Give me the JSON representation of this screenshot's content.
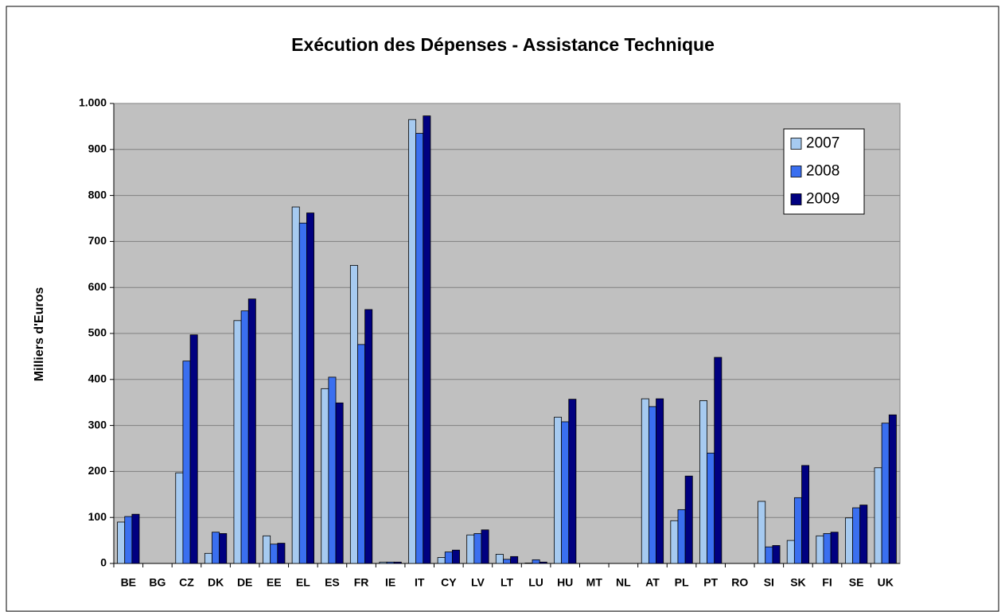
{
  "chart_data": {
    "type": "bar",
    "title": "Exécution des Dépenses - Assistance Technique",
    "y_label": "Milliers d'Euros",
    "categories": [
      "BE",
      "BG",
      "CZ",
      "DK",
      "DE",
      "EE",
      "EL",
      "ES",
      "FR",
      "IE",
      "IT",
      "CY",
      "LV",
      "LT",
      "LU",
      "HU",
      "MT",
      "NL",
      "AT",
      "PL",
      "PT",
      "RO",
      "SI",
      "SK",
      "FI",
      "SE",
      "UK"
    ],
    "series": [
      {
        "name": "2007",
        "color": "#a6caf0",
        "values": [
          90,
          0,
          197,
          22,
          528,
          60,
          775,
          380,
          648,
          3,
          965,
          13,
          62,
          20,
          1,
          318,
          0,
          0,
          358,
          93,
          354,
          0,
          135,
          50,
          60,
          99,
          208
        ]
      },
      {
        "name": "2008",
        "color": "#3a6ff0",
        "values": [
          102,
          0,
          440,
          68,
          549,
          42,
          740,
          405,
          476,
          3,
          935,
          25,
          65,
          9,
          8,
          308,
          0,
          0,
          341,
          117,
          240,
          0,
          36,
          143,
          65,
          121,
          305
        ]
      },
      {
        "name": "2009",
        "color": "#000080",
        "values": [
          107,
          0,
          497,
          65,
          575,
          44,
          762,
          349,
          552,
          3,
          973,
          29,
          73,
          15,
          3,
          357,
          0,
          0,
          358,
          190,
          448,
          0,
          39,
          213,
          68,
          127,
          323
        ]
      }
    ],
    "ylim": [
      0,
      1000
    ],
    "yticks": [
      0,
      100,
      200,
      300,
      400,
      500,
      600,
      700,
      800,
      900,
      {
        "value": 1000,
        "label": "1.000"
      }
    ],
    "grid": true,
    "legend": "upper right"
  }
}
